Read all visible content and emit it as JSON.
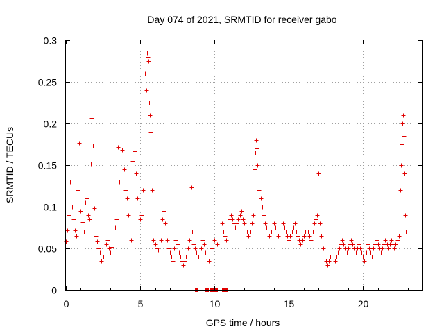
{
  "chart_data": {
    "type": "scatter",
    "title": "Day 074 of 2021, SRMTID for receiver gabo",
    "xlabel": "GPS time / hours",
    "ylabel": "SRMTID / TECUs",
    "xlim": [
      0,
      24
    ],
    "ylim": [
      0,
      0.3
    ],
    "xticks": [
      0,
      5,
      10,
      15,
      20
    ],
    "xtick_labels": [
      "0",
      "5",
      "10",
      "15",
      "20"
    ],
    "yticks": [
      0,
      0.05,
      0.1,
      0.15,
      0.2,
      0.25,
      0.3
    ],
    "ytick_labels": [
      "0",
      "0.05",
      "0.1",
      "0.15",
      "0.2",
      "0.25",
      "0.3"
    ],
    "grid": true,
    "marker": "plus",
    "color": "#e00000",
    "series": [
      {
        "name": "SRMTID",
        "points": [
          [
            0.0,
            0.058
          ],
          [
            0.1,
            0.072
          ],
          [
            0.2,
            0.09
          ],
          [
            0.3,
            0.13
          ],
          [
            0.4,
            0.1
          ],
          [
            0.5,
            0.085
          ],
          [
            0.6,
            0.072
          ],
          [
            0.7,
            0.065
          ],
          [
            0.8,
            0.12
          ],
          [
            0.9,
            0.177
          ],
          [
            1.0,
            0.095
          ],
          [
            1.1,
            0.082
          ],
          [
            1.2,
            0.07
          ],
          [
            1.3,
            0.105
          ],
          [
            1.4,
            0.11
          ],
          [
            1.5,
            0.09
          ],
          [
            1.6,
            0.085
          ],
          [
            1.7,
            0.152
          ],
          [
            1.75,
            0.207
          ],
          [
            1.8,
            0.173
          ],
          [
            1.9,
            0.098
          ],
          [
            2.0,
            0.065
          ],
          [
            2.1,
            0.058
          ],
          [
            2.2,
            0.05
          ],
          [
            2.3,
            0.045
          ],
          [
            2.4,
            0.035
          ],
          [
            2.5,
            0.04
          ],
          [
            2.6,
            0.048
          ],
          [
            2.7,
            0.055
          ],
          [
            2.8,
            0.06
          ],
          [
            2.9,
            0.05
          ],
          [
            3.0,
            0.045
          ],
          [
            3.1,
            0.052
          ],
          [
            3.2,
            0.062
          ],
          [
            3.3,
            0.075
          ],
          [
            3.4,
            0.085
          ],
          [
            3.5,
            0.172
          ],
          [
            3.6,
            0.13
          ],
          [
            3.7,
            0.195
          ],
          [
            3.8,
            0.168
          ],
          [
            3.9,
            0.145
          ],
          [
            4.0,
            0.12
          ],
          [
            4.1,
            0.11
          ],
          [
            4.2,
            0.09
          ],
          [
            4.3,
            0.07
          ],
          [
            4.4,
            0.06
          ],
          [
            4.5,
            0.155
          ],
          [
            4.6,
            0.167
          ],
          [
            4.7,
            0.14
          ],
          [
            4.8,
            0.11
          ],
          [
            4.9,
            0.07
          ],
          [
            5.0,
            0.085
          ],
          [
            5.1,
            0.09
          ],
          [
            5.2,
            0.12
          ],
          [
            5.3,
            0.26
          ],
          [
            5.4,
            0.24
          ],
          [
            5.45,
            0.285
          ],
          [
            5.5,
            0.28
          ],
          [
            5.55,
            0.275
          ],
          [
            5.6,
            0.225
          ],
          [
            5.65,
            0.21
          ],
          [
            5.7,
            0.19
          ],
          [
            5.8,
            0.12
          ],
          [
            5.9,
            0.06
          ],
          [
            6.0,
            0.055
          ],
          [
            6.1,
            0.05
          ],
          [
            6.2,
            0.048
          ],
          [
            6.3,
            0.045
          ],
          [
            6.4,
            0.06
          ],
          [
            6.5,
            0.085
          ],
          [
            6.6,
            0.095
          ],
          [
            6.7,
            0.08
          ],
          [
            6.8,
            0.06
          ],
          [
            6.9,
            0.05
          ],
          [
            7.0,
            0.045
          ],
          [
            7.1,
            0.04
          ],
          [
            7.2,
            0.035
          ],
          [
            7.3,
            0.05
          ],
          [
            7.4,
            0.06
          ],
          [
            7.5,
            0.055
          ],
          [
            7.6,
            0.045
          ],
          [
            7.7,
            0.04
          ],
          [
            7.8,
            0.035
          ],
          [
            7.9,
            0.03
          ],
          [
            8.0,
            0.035
          ],
          [
            8.1,
            0.04
          ],
          [
            8.2,
            0.05
          ],
          [
            8.3,
            0.06
          ],
          [
            8.4,
            0.105
          ],
          [
            8.45,
            0.123
          ],
          [
            8.5,
            0.07
          ],
          [
            8.6,
            0.055
          ],
          [
            8.7,
            0.05
          ],
          [
            8.8,
            0.045
          ],
          [
            8.9,
            0.04
          ],
          [
            9.0,
            0.045
          ],
          [
            9.1,
            0.05
          ],
          [
            9.2,
            0.06
          ],
          [
            9.3,
            0.055
          ],
          [
            9.4,
            0.045
          ],
          [
            9.5,
            0.04
          ],
          [
            9.6,
            0.035
          ],
          [
            9.8,
            0.05
          ],
          [
            10.0,
            0.06
          ],
          [
            10.2,
            0.055
          ],
          [
            10.4,
            0.07
          ],
          [
            10.5,
            0.08
          ],
          [
            10.6,
            0.07
          ],
          [
            10.7,
            0.065
          ],
          [
            10.8,
            0.06
          ],
          [
            10.9,
            0.075
          ],
          [
            11.0,
            0.085
          ],
          [
            11.1,
            0.09
          ],
          [
            11.2,
            0.085
          ],
          [
            11.3,
            0.08
          ],
          [
            11.4,
            0.075
          ],
          [
            11.5,
            0.08
          ],
          [
            11.6,
            0.085
          ],
          [
            11.7,
            0.09
          ],
          [
            11.8,
            0.095
          ],
          [
            11.9,
            0.085
          ],
          [
            12.0,
            0.08
          ],
          [
            12.1,
            0.075
          ],
          [
            12.2,
            0.07
          ],
          [
            12.3,
            0.065
          ],
          [
            12.4,
            0.07
          ],
          [
            12.5,
            0.08
          ],
          [
            12.6,
            0.09
          ],
          [
            12.7,
            0.145
          ],
          [
            12.75,
            0.165
          ],
          [
            12.8,
            0.18
          ],
          [
            12.85,
            0.17
          ],
          [
            12.9,
            0.15
          ],
          [
            13.0,
            0.12
          ],
          [
            13.1,
            0.11
          ],
          [
            13.2,
            0.1
          ],
          [
            13.3,
            0.09
          ],
          [
            13.4,
            0.08
          ],
          [
            13.5,
            0.075
          ],
          [
            13.6,
            0.07
          ],
          [
            13.7,
            0.065
          ],
          [
            13.8,
            0.07
          ],
          [
            13.9,
            0.075
          ],
          [
            14.0,
            0.08
          ],
          [
            14.1,
            0.075
          ],
          [
            14.2,
            0.07
          ],
          [
            14.3,
            0.065
          ],
          [
            14.4,
            0.07
          ],
          [
            14.5,
            0.075
          ],
          [
            14.6,
            0.08
          ],
          [
            14.7,
            0.075
          ],
          [
            14.8,
            0.07
          ],
          [
            14.9,
            0.065
          ],
          [
            15.0,
            0.06
          ],
          [
            15.1,
            0.065
          ],
          [
            15.2,
            0.07
          ],
          [
            15.3,
            0.075
          ],
          [
            15.4,
            0.08
          ],
          [
            15.5,
            0.07
          ],
          [
            15.6,
            0.065
          ],
          [
            15.7,
            0.06
          ],
          [
            15.8,
            0.055
          ],
          [
            15.9,
            0.06
          ],
          [
            16.0,
            0.065
          ],
          [
            16.1,
            0.07
          ],
          [
            16.2,
            0.075
          ],
          [
            16.3,
            0.07
          ],
          [
            16.4,
            0.065
          ],
          [
            16.5,
            0.06
          ],
          [
            16.6,
            0.07
          ],
          [
            16.7,
            0.08
          ],
          [
            16.8,
            0.085
          ],
          [
            16.9,
            0.09
          ],
          [
            16.95,
            0.13
          ],
          [
            17.0,
            0.14
          ],
          [
            17.1,
            0.08
          ],
          [
            17.2,
            0.065
          ],
          [
            17.3,
            0.05
          ],
          [
            17.4,
            0.04
          ],
          [
            17.5,
            0.035
          ],
          [
            17.6,
            0.03
          ],
          [
            17.7,
            0.035
          ],
          [
            17.8,
            0.04
          ],
          [
            17.9,
            0.045
          ],
          [
            18.0,
            0.04
          ],
          [
            18.1,
            0.035
          ],
          [
            18.2,
            0.04
          ],
          [
            18.3,
            0.045
          ],
          [
            18.4,
            0.05
          ],
          [
            18.5,
            0.055
          ],
          [
            18.6,
            0.06
          ],
          [
            18.7,
            0.055
          ],
          [
            18.8,
            0.05
          ],
          [
            18.9,
            0.045
          ],
          [
            19.0,
            0.05
          ],
          [
            19.1,
            0.055
          ],
          [
            19.2,
            0.06
          ],
          [
            19.3,
            0.055
          ],
          [
            19.4,
            0.05
          ],
          [
            19.5,
            0.045
          ],
          [
            19.6,
            0.05
          ],
          [
            19.7,
            0.055
          ],
          [
            19.8,
            0.05
          ],
          [
            19.9,
            0.045
          ],
          [
            20.0,
            0.04
          ],
          [
            20.1,
            0.035
          ],
          [
            20.2,
            0.045
          ],
          [
            20.3,
            0.055
          ],
          [
            20.4,
            0.05
          ],
          [
            20.5,
            0.045
          ],
          [
            20.6,
            0.04
          ],
          [
            20.7,
            0.05
          ],
          [
            20.8,
            0.055
          ],
          [
            20.9,
            0.06
          ],
          [
            21.0,
            0.055
          ],
          [
            21.1,
            0.05
          ],
          [
            21.2,
            0.045
          ],
          [
            21.3,
            0.05
          ],
          [
            21.4,
            0.055
          ],
          [
            21.5,
            0.06
          ],
          [
            21.6,
            0.055
          ],
          [
            21.7,
            0.05
          ],
          [
            21.8,
            0.055
          ],
          [
            21.9,
            0.06
          ],
          [
            22.0,
            0.055
          ],
          [
            22.1,
            0.05
          ],
          [
            22.2,
            0.055
          ],
          [
            22.3,
            0.06
          ],
          [
            22.4,
            0.065
          ],
          [
            22.5,
            0.12
          ],
          [
            22.55,
            0.15
          ],
          [
            22.6,
            0.175
          ],
          [
            22.65,
            0.2
          ],
          [
            22.7,
            0.21
          ],
          [
            22.75,
            0.185
          ],
          [
            22.8,
            0.14
          ],
          [
            22.85,
            0.09
          ],
          [
            22.9,
            0.07
          ]
        ]
      }
    ],
    "gaps": [
      8.8,
      9.5,
      9.8,
      10.0,
      10.1,
      10.6,
      10.8
    ]
  }
}
